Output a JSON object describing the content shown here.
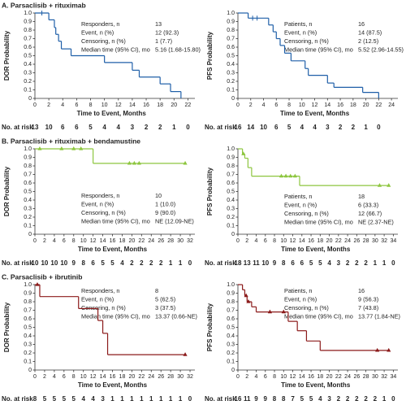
{
  "chart_data": [
    {
      "type": "step",
      "title": "A. Parsaclisib + rituximab",
      "ylabel": "DOR Probability",
      "xlabel": "Time to Event, Months",
      "color": "#1f5fa8",
      "censor_marker": "tick",
      "xlim": [
        0,
        23
      ],
      "xticks": [
        0,
        2,
        4,
        6,
        8,
        10,
        12,
        14,
        16,
        18,
        20,
        22
      ],
      "ylim": [
        0,
        1
      ],
      "yticks": [
        0,
        0.1,
        0.2,
        0.3,
        0.4,
        0.5,
        0.6,
        0.7,
        0.8,
        0.9,
        {
          "value": 1,
          "label": "1.0"
        }
      ],
      "x": [
        0,
        2,
        2.8,
        3,
        3.4,
        3.8,
        5.2,
        10,
        14,
        15,
        18,
        19.5,
        21
      ],
      "values": [
        1,
        0.92,
        0.83,
        0.75,
        0.67,
        0.58,
        0.5,
        0.42,
        0.33,
        0.25,
        0.17,
        0.08,
        0
      ],
      "censor_x": [
        1
      ],
      "censor_values": [
        1
      ],
      "stats": [
        {
          "label": "Responders, n",
          "value": "13"
        },
        {
          "label": "Event, n (%)",
          "value": "12 (92.3)"
        },
        {
          "label": "Censoring, n (%)",
          "value": "1 (7.7)"
        },
        {
          "label": "Median time (95% CI), mo",
          "value": "5.16 (1.68-15.80)"
        }
      ],
      "at_risk_label": "No. at risk",
      "at_risk": [
        13,
        10,
        6,
        6,
        5,
        4,
        4,
        3,
        2,
        2,
        1,
        0
      ]
    },
    {
      "type": "step",
      "ylabel": "PFS Probability",
      "xlabel": "Time to Event, Months",
      "color": "#1f5fa8",
      "censor_marker": "tick",
      "xlim": [
        0,
        25
      ],
      "xticks": [
        0,
        2,
        4,
        6,
        8,
        10,
        12,
        14,
        16,
        18,
        20,
        22,
        24
      ],
      "ylim": [
        0,
        1
      ],
      "yticks": [
        0,
        0.1,
        0.2,
        0.3,
        0.4,
        0.5,
        0.6,
        0.7,
        0.8,
        0.9,
        {
          "value": 1,
          "label": "1.0"
        }
      ],
      "x": [
        0,
        1.6,
        4.8,
        5.5,
        6,
        6.6,
        7.3,
        8.3,
        10.5,
        11,
        14,
        15,
        19.5,
        22
      ],
      "values": [
        1,
        0.94,
        0.86,
        0.78,
        0.7,
        0.62,
        0.53,
        0.44,
        0.35,
        0.27,
        0.18,
        0.13,
        0.07,
        0
      ],
      "censor_x": [
        2.3,
        3
      ],
      "censor_values": [
        0.94,
        0.94
      ],
      "stats": [
        {
          "label": "Patients, n",
          "value": "16"
        },
        {
          "label": "Event, n (%)",
          "value": "14 (87.5)"
        },
        {
          "label": "Censoring, n (%)",
          "value": "2 (12.5)"
        },
        {
          "label": "Median time (95% CI), mo",
          "value": "5.52 (2.96-14.55)"
        }
      ],
      "at_risk_label": "No. at risk",
      "at_risk": [
        16,
        14,
        10,
        6,
        5,
        4,
        4,
        3,
        2,
        2,
        1,
        0
      ]
    },
    {
      "type": "step",
      "title": "B. Parsaclisib + rituximab + bendamustine",
      "ylabel": "DOR Probability",
      "xlabel": "Time to Event, Months",
      "color": "#8dc63f",
      "censor_marker": "triangle",
      "xlim": [
        0,
        33
      ],
      "xticks": [
        0,
        2,
        4,
        6,
        8,
        10,
        12,
        14,
        16,
        18,
        20,
        22,
        24,
        26,
        28,
        30,
        32
      ],
      "ylim": [
        0,
        1
      ],
      "yticks": [
        0,
        0.1,
        0.2,
        0.3,
        0.4,
        0.5,
        0.6,
        0.7,
        0.8,
        0.9,
        {
          "value": 1,
          "label": "1.0"
        }
      ],
      "x": [
        0,
        12,
        31
      ],
      "values": [
        1,
        0.83,
        0.83
      ],
      "censor_x": [
        1,
        5.5,
        8,
        9.5,
        19.5,
        20.5,
        21.5,
        31
      ],
      "censor_values": [
        1,
        1,
        1,
        1,
        0.83,
        0.83,
        0.83,
        0.83
      ],
      "stats": [
        {
          "label": "Responders, n",
          "value": "10"
        },
        {
          "label": "Event, n (%)",
          "value": "1 (10.0)"
        },
        {
          "label": "Censoring, n (%)",
          "value": "9 (90.0)"
        },
        {
          "label": "Median time (95% CI), mo",
          "value": "NE (12.09-NE)"
        }
      ],
      "at_risk_label": "No. at risk",
      "at_risk": [
        10,
        10,
        10,
        10,
        9,
        8,
        6,
        5,
        5,
        4,
        2,
        2,
        2,
        2,
        1,
        1,
        0
      ]
    },
    {
      "type": "step",
      "ylabel": "PFS Probability",
      "xlabel": "Time to Event, Months",
      "color": "#8dc63f",
      "censor_marker": "triangle",
      "xlim": [
        0,
        35
      ],
      "xticks": [
        0,
        2,
        4,
        6,
        8,
        10,
        12,
        14,
        16,
        18,
        20,
        22,
        24,
        26,
        28,
        30,
        32,
        34
      ],
      "ylim": [
        0,
        1
      ],
      "yticks": [
        0,
        0.1,
        0.2,
        0.3,
        0.4,
        0.5,
        0.6,
        0.7,
        0.8,
        0.9,
        {
          "value": 1,
          "label": "1.0"
        }
      ],
      "x": [
        0,
        1,
        1.5,
        2.2,
        3,
        13.5,
        33
      ],
      "values": [
        1,
        0.94,
        0.89,
        0.78,
        0.68,
        0.57,
        0.57
      ],
      "censor_x": [
        1.2,
        9.5,
        10.5,
        11.5,
        12.5,
        31,
        33
      ],
      "censor_values": [
        0.94,
        0.68,
        0.68,
        0.68,
        0.68,
        0.57,
        0.57
      ],
      "stats": [
        {
          "label": "Patients, n",
          "value": "18"
        },
        {
          "label": "Event, n (%)",
          "value": "6 (33.3)"
        },
        {
          "label": "Censoring, n (%)",
          "value": "12 (66.7)"
        },
        {
          "label": "Median time (95% CI), mo",
          "value": "NE (2.37-NE)"
        }
      ],
      "at_risk_label": "No. at risk",
      "at_risk": [
        18,
        13,
        11,
        10,
        9,
        8,
        6,
        6,
        5,
        5,
        4,
        3,
        2,
        2,
        2,
        1,
        1,
        0
      ]
    },
    {
      "type": "step",
      "title": "C. Parsaclisib + ibrutinib",
      "ylabel": "DOR Probability",
      "xlabel": "Time to Event, Months",
      "color": "#8b1a1a",
      "censor_marker": "triangle",
      "xlim": [
        0,
        33
      ],
      "xticks": [
        0,
        2,
        4,
        6,
        8,
        10,
        12,
        14,
        16,
        18,
        20,
        22,
        24,
        26,
        28,
        30,
        32
      ],
      "ylim": [
        0,
        1
      ],
      "yticks": [
        0,
        0.1,
        0.2,
        0.3,
        0.4,
        0.5,
        0.6,
        0.7,
        0.8,
        0.9,
        {
          "value": 1,
          "label": "1.0"
        }
      ],
      "x": [
        0,
        1,
        9,
        13,
        14,
        15,
        31
      ],
      "values": [
        1,
        0.86,
        0.72,
        0.58,
        0.43,
        0.18,
        0.18
      ],
      "censor_x": [
        0.5,
        31
      ],
      "censor_values": [
        1,
        0.18
      ],
      "stats": [
        {
          "label": "Responders, n",
          "value": "8"
        },
        {
          "label": "Event, n (%)",
          "value": "5 (62.5)"
        },
        {
          "label": "Censoring, n (%)",
          "value": "3 (37.5)"
        },
        {
          "label": "Median time (95% CI), mo",
          "value": "13.37 (0.66-NE)"
        }
      ],
      "at_risk_label": "No. at risk",
      "at_risk": [
        8,
        5,
        5,
        5,
        5,
        4,
        4,
        3,
        1,
        1,
        1,
        1,
        1,
        1,
        1,
        1,
        0
      ]
    },
    {
      "type": "step",
      "ylabel": "PFS Probability",
      "xlabel": "Time to Event, Months",
      "color": "#8b1a1a",
      "censor_marker": "triangle",
      "xlim": [
        0,
        35
      ],
      "xticks": [
        0,
        2,
        4,
        6,
        8,
        10,
        12,
        14,
        16,
        18,
        20,
        22,
        24,
        26,
        28,
        30,
        32,
        34
      ],
      "ylim": [
        0,
        1
      ],
      "yticks": [
        0,
        0.1,
        0.2,
        0.3,
        0.4,
        0.5,
        0.6,
        0.7,
        0.8,
        0.9,
        {
          "value": 1,
          "label": "1.0"
        }
      ],
      "x": [
        0,
        1,
        1.5,
        2,
        3,
        4,
        11,
        13,
        15,
        18,
        33
      ],
      "values": [
        1,
        0.94,
        0.87,
        0.8,
        0.74,
        0.68,
        0.57,
        0.46,
        0.34,
        0.23,
        0.23
      ],
      "censor_x": [
        1.8,
        2.3,
        7,
        10,
        30.5,
        33
      ],
      "censor_values": [
        0.87,
        0.8,
        0.68,
        0.68,
        0.23,
        0.23
      ],
      "stats": [
        {
          "label": "Patients, n",
          "value": "16"
        },
        {
          "label": "Event, n (%)",
          "value": "9 (56.3)"
        },
        {
          "label": "Censoring, n (%)",
          "value": "7 (43.8)"
        },
        {
          "label": "Median time (95% CI), mo",
          "value": "13.77 (1.84-NE)"
        }
      ],
      "at_risk_label": "No. at risk",
      "at_risk": [
        16,
        11,
        9,
        9,
        8,
        8,
        7,
        5,
        5,
        4,
        3,
        2,
        2,
        2,
        2,
        2,
        1,
        0
      ]
    }
  ]
}
